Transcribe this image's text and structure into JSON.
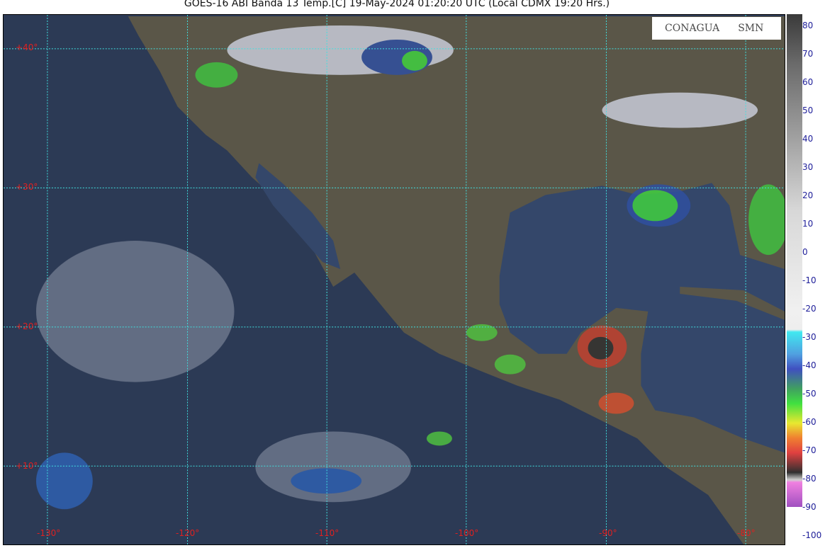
{
  "title": "GOES-16 ABI Banda 13 Temp.[C] 19-May-2024 01:20:20 UTC (Local CDMX  19:20 Hrs.)",
  "logos": {
    "conagua": "CONAGUA",
    "smn": "SMN"
  },
  "lat_labels": [
    "+40°",
    "+30°",
    "+20°",
    "+10°"
  ],
  "lon_labels": [
    "-130°",
    "-120°",
    "-110°",
    "-100°",
    "-90°",
    "-80°"
  ],
  "colorbar": {
    "unit": "Temp.[C]",
    "ticks": [
      "80",
      "70",
      "60",
      "50",
      "40",
      "30",
      "20",
      "10",
      "0",
      "-10",
      "-20",
      "-30",
      "-40",
      "-50",
      "-60",
      "-70",
      "-80",
      "-90",
      "-100"
    ]
  },
  "colors": {
    "ocean": "#2c3a55",
    "land": "#5a5648",
    "grid": "#40e0e0",
    "label": "#e02020",
    "tick_text": "#20209a"
  }
}
